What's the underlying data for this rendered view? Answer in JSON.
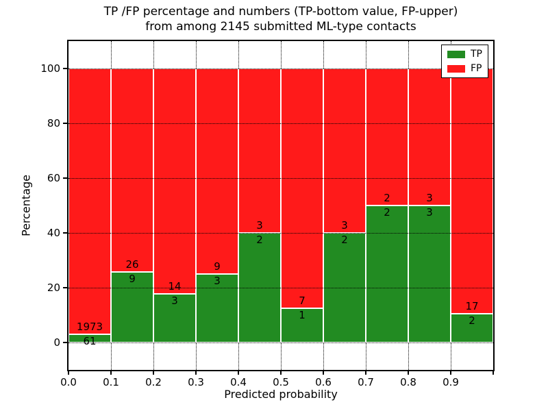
{
  "title": {
    "line1": "TP /FP percentage and numbers (TP-bottom value, FP-upper)",
    "line2": "from among 2145 submitted ML-type contacts"
  },
  "x_axis": {
    "label": "Predicted probability",
    "ticks": [
      "0.0",
      "0.1",
      "0.2",
      "0.3",
      "0.4",
      "0.5",
      "0.6",
      "0.7",
      "0.8",
      "0.9"
    ]
  },
  "y_axis": {
    "label": "Percentage",
    "ticks": [
      "0",
      "20",
      "40",
      "60",
      "80",
      "100"
    ]
  },
  "legend": {
    "items": [
      {
        "label": "TP",
        "color": "#228B22"
      },
      {
        "label": "FP",
        "color": "#FF1A1A"
      }
    ]
  },
  "colors": {
    "tp": "#228B22",
    "fp": "#FF1A1A",
    "bar_edge": "#ffffff",
    "grid": "#000000"
  },
  "chart_data": {
    "type": "bar",
    "subtype": "stacked-100-percent",
    "title": "TP /FP percentage and numbers (TP-bottom value, FP-upper) from among 2145 submitted ML-type contacts",
    "xlabel": "Predicted probability",
    "ylabel": "Percentage",
    "xlim": [
      0.0,
      1.0
    ],
    "ylim": [
      -10,
      110
    ],
    "yticks": [
      0,
      20,
      40,
      60,
      80,
      100
    ],
    "bin_width": 0.1,
    "bin_starts": [
      0.0,
      0.1,
      0.2,
      0.3,
      0.4,
      0.5,
      0.6,
      0.7,
      0.8,
      0.9
    ],
    "total_contacts": 2145,
    "grid": "dotted, both axes",
    "legend_position": "upper right",
    "series": [
      {
        "name": "TP",
        "color": "#228B22",
        "counts": [
          61,
          9,
          3,
          3,
          2,
          1,
          2,
          2,
          3,
          2
        ]
      },
      {
        "name": "FP",
        "color": "#FF1A1A",
        "counts": [
          1973,
          26,
          14,
          9,
          3,
          7,
          3,
          2,
          3,
          17
        ]
      }
    ],
    "tp_percent": [
      3.0,
      25.71,
      17.65,
      25.0,
      40.0,
      12.5,
      40.0,
      50.0,
      50.0,
      10.53
    ]
  }
}
